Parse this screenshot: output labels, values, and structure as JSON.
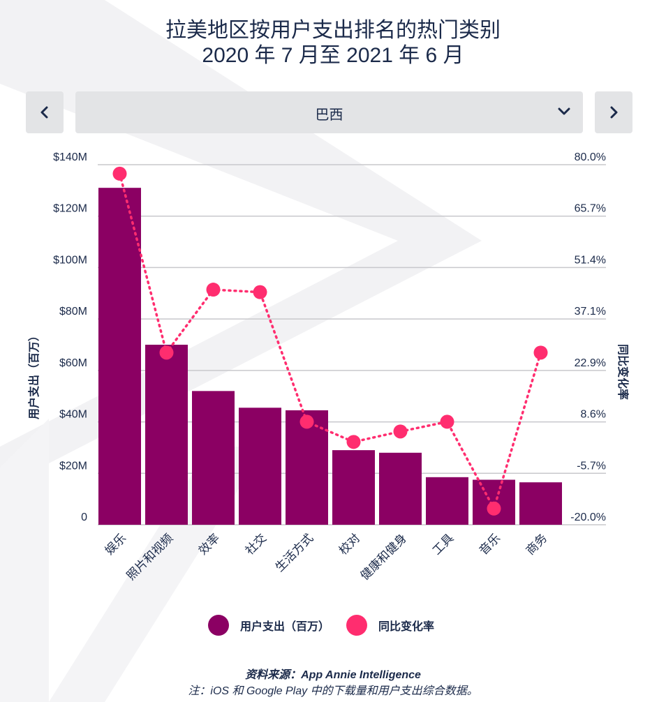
{
  "header": {
    "title_line1": "拉美地区按用户支出排名的热门类别",
    "title_line2": "2020 年 7 月至 2021 年 6 月"
  },
  "selector": {
    "country": "巴西",
    "prev_icon": "chevron-left-icon",
    "next_icon": "chevron-right-icon",
    "dropdown_icon": "chevron-down-icon"
  },
  "colors": {
    "bar": "#8b0063",
    "line": "#ff2d6f",
    "grid": "#c8c8cc",
    "text": "#1b2a4a",
    "button_bg": "#e3e4e6"
  },
  "legend": {
    "spend_label": "用户支出（百万）",
    "yoy_label": "同比变化率"
  },
  "footer": {
    "source": "资料来源：App Annie Intelligence",
    "note": "注：iOS 和 Google Play 中的下载量和用户支出综合数据。"
  },
  "chart_data": {
    "type": "bar+line",
    "title": "拉美地区按用户支出排名的热门类别",
    "subtitle": "2020 年 7 月至 2021 年 6 月",
    "categories": [
      "娱乐",
      "照片和视频",
      "效率",
      "社交",
      "生活方式",
      "校对",
      "健康和健身",
      "工具",
      "音乐",
      "商务"
    ],
    "series": [
      {
        "name": "用户支出（百万）",
        "type": "bar",
        "axis": "left",
        "values": [
          131,
          70,
          52,
          45.5,
          44.5,
          29,
          28,
          18.5,
          17.5,
          16.5
        ]
      },
      {
        "name": "同比变化率",
        "type": "line",
        "axis": "right",
        "values": [
          77.5,
          27.8,
          45.3,
          44.6,
          8.6,
          3,
          5.9,
          8.6,
          -15.5,
          27.8
        ]
      }
    ],
    "left_axis": {
      "label": "用户支出（百万）",
      "range": [
        0,
        140
      ],
      "ticks": [
        0,
        20,
        40,
        60,
        80,
        100,
        120,
        140
      ],
      "tick_labels": [
        "0",
        "$20M",
        "$40M",
        "$60M",
        "$80M",
        "$100M",
        "$120M",
        "$140M"
      ]
    },
    "right_axis": {
      "label": "同比变化率",
      "range": [
        -20,
        80
      ],
      "tick_labels": [
        "-20.0%",
        "-5.7%",
        "8.6%",
        "22.9%",
        "37.1%",
        "51.4%",
        "65.7%",
        "80.0%"
      ]
    },
    "grid": true,
    "legend_position": "bottom"
  }
}
